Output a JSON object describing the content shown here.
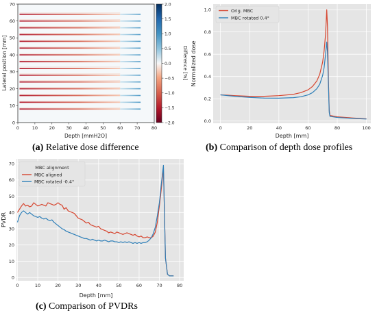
{
  "colors": {
    "red": "#d6452f",
    "blue": "#2e7fb8",
    "plot_bg": "#e5e5e5",
    "grid": "#ffffff"
  },
  "panel_a": {
    "caption_label": "(a)",
    "caption_text": "Relative dose difference",
    "xlabel": "Depth [mmH2O]",
    "ylabel": "Lateral position [mm]",
    "xticks": [
      "0",
      "10",
      "20",
      "30",
      "40",
      "50",
      "60",
      "70",
      "80"
    ],
    "yticks": [
      "0",
      "10",
      "20",
      "30",
      "40",
      "50",
      "60",
      "70"
    ],
    "colorbar_label": "Difference [%]",
    "colorbar_ticks": [
      "2.0",
      "1.5",
      "1.0",
      "0.5",
      "0.0",
      "−0.5",
      "−1.0",
      "−1.5",
      "−2.0"
    ]
  },
  "panel_b": {
    "caption_label": "(b)",
    "caption_text": "Comparison of depth dose profiles",
    "xlabel": "Depth [mm]",
    "ylabel": "Normalized dose",
    "xticks": [
      "0",
      "20",
      "40",
      "60",
      "80",
      "100"
    ],
    "yticks": [
      "0.0",
      "0.2",
      "0.4",
      "0.6",
      "0.8",
      "1.0"
    ],
    "legend": [
      "Orig. MBC",
      "MBC rotated 0.4°"
    ]
  },
  "panel_c": {
    "caption_label": "(c)",
    "caption_text": "Comparison of PVDRs",
    "xlabel": "Depth [mm]",
    "ylabel": "PVDR",
    "xticks": [
      "0",
      "10",
      "20",
      "30",
      "40",
      "50",
      "60",
      "70",
      "80"
    ],
    "yticks": [
      "0",
      "10",
      "20",
      "30",
      "40",
      "50",
      "60",
      "70"
    ],
    "legend_title": "MBC alignment",
    "legend": [
      "MBC aligned",
      "MBC rotated -0.4°"
    ]
  },
  "chart_data": [
    {
      "type": "heatmap",
      "xlabel": "Depth [mmH2O]",
      "ylabel": "Lateral position [mm]",
      "xlim": [
        0,
        80
      ],
      "ylim": [
        0,
        70
      ],
      "colorbar_label": "Difference [%]",
      "colorbar_range": [
        -2.0,
        2.0
      ],
      "stripe_y": [
        8,
        12,
        16,
        20,
        24,
        28,
        32,
        36,
        40,
        44,
        48,
        52,
        56,
        60,
        64
      ]
    },
    {
      "type": "line",
      "xlabel": "Depth [mm]",
      "ylabel": "Normalized dose",
      "xlim": [
        -5,
        103
      ],
      "ylim": [
        -0.02,
        1.05
      ],
      "series": [
        {
          "name": "Orig. MBC",
          "x": [
            0,
            5,
            10,
            20,
            30,
            40,
            50,
            55,
            60,
            63,
            66,
            68,
            70,
            71,
            72,
            72.8,
            73.3,
            74,
            74.5,
            75,
            80,
            90,
            100
          ],
          "y": [
            0.235,
            0.232,
            0.228,
            0.222,
            0.222,
            0.228,
            0.24,
            0.255,
            0.28,
            0.31,
            0.36,
            0.42,
            0.53,
            0.63,
            0.78,
            1.0,
            0.85,
            0.35,
            0.1,
            0.05,
            0.038,
            0.028,
            0.02
          ]
        },
        {
          "name": "MBC rotated 0.4°",
          "x": [
            0,
            5,
            10,
            20,
            30,
            40,
            50,
            55,
            60,
            63,
            66,
            68,
            70,
            71,
            72,
            72.8,
            73.3,
            74,
            74.5,
            75,
            80,
            90,
            100
          ],
          "y": [
            0.235,
            0.228,
            0.222,
            0.212,
            0.206,
            0.205,
            0.21,
            0.218,
            0.235,
            0.255,
            0.29,
            0.33,
            0.41,
            0.48,
            0.6,
            0.71,
            0.62,
            0.3,
            0.08,
            0.042,
            0.032,
            0.024,
            0.018
          ]
        }
      ]
    },
    {
      "type": "line",
      "xlabel": "Depth [mm]",
      "ylabel": "PVDR",
      "xlim": [
        -0.5,
        82
      ],
      "ylim": [
        -2,
        73
      ],
      "series": [
        {
          "name": "MBC aligned",
          "x": [
            0,
            1,
            2,
            3,
            4,
            5,
            6,
            7,
            8,
            9,
            10,
            11,
            12,
            13,
            14,
            15,
            16,
            17,
            18,
            19,
            20,
            21,
            22,
            23,
            24,
            25,
            26,
            27,
            28,
            29,
            30,
            31,
            32,
            33,
            34,
            35,
            36,
            37,
            38,
            39,
            40,
            41,
            42,
            43,
            44,
            45,
            46,
            47,
            48,
            49,
            50,
            51,
            52,
            53,
            54,
            55,
            56,
            57,
            58,
            59,
            60,
            61,
            62,
            63,
            64,
            65,
            66,
            67,
            68,
            69,
            70,
            71,
            72,
            73,
            74,
            75,
            76,
            77
          ],
          "y": [
            40,
            42,
            44,
            45.5,
            44,
            44.5,
            43.5,
            44,
            46,
            45,
            44,
            44.5,
            45,
            44.5,
            44,
            46,
            45.5,
            45,
            44.5,
            45,
            46,
            45,
            44.5,
            42,
            43,
            41,
            40.5,
            40,
            39.5,
            38,
            36.5,
            36,
            35.5,
            34.5,
            33.5,
            34,
            32.5,
            32,
            31.5,
            31,
            31.5,
            30,
            29.5,
            29,
            28.5,
            27.5,
            28,
            27.5,
            27,
            28,
            27.5,
            27,
            26.5,
            27,
            27.5,
            27,
            26.5,
            26,
            26.5,
            25.5,
            25,
            25.5,
            24.5,
            24.5,
            25,
            24.5,
            24.5,
            25.5,
            28,
            34,
            44,
            55,
            68,
            12,
            2,
            1,
            1,
            1
          ]
        },
        {
          "name": "MBC rotated -0.4°",
          "x": [
            0,
            1,
            2,
            3,
            4,
            5,
            6,
            7,
            8,
            9,
            10,
            11,
            12,
            13,
            14,
            15,
            16,
            17,
            18,
            19,
            20,
            21,
            22,
            23,
            24,
            25,
            26,
            27,
            28,
            29,
            30,
            31,
            32,
            33,
            34,
            35,
            36,
            37,
            38,
            39,
            40,
            41,
            42,
            43,
            44,
            45,
            46,
            47,
            48,
            49,
            50,
            51,
            52,
            53,
            54,
            55,
            56,
            57,
            58,
            59,
            60,
            61,
            62,
            63,
            64,
            65,
            66,
            67,
            68,
            69,
            70,
            71,
            72,
            73,
            74,
            75,
            76,
            77
          ],
          "y": [
            34,
            38,
            40,
            41,
            40,
            39,
            40,
            39,
            38,
            37.5,
            37,
            37.5,
            36.5,
            36,
            36.5,
            35.5,
            35,
            35.5,
            34,
            33,
            32,
            31,
            30,
            29.5,
            28.5,
            28,
            27.5,
            27,
            26.5,
            26,
            25.5,
            25,
            24.5,
            24,
            24,
            23.5,
            23,
            23.5,
            23,
            22.5,
            23,
            22.5,
            22.5,
            23,
            22.5,
            22,
            22.5,
            22.5,
            22,
            22,
            21.5,
            22,
            21.5,
            22,
            21.5,
            22,
            21.5,
            21,
            21.5,
            21,
            21.5,
            21,
            21.5,
            21.5,
            22,
            23,
            24.5,
            27,
            31,
            38,
            46,
            58,
            69,
            12,
            2,
            1,
            1,
            1
          ]
        }
      ]
    }
  ]
}
